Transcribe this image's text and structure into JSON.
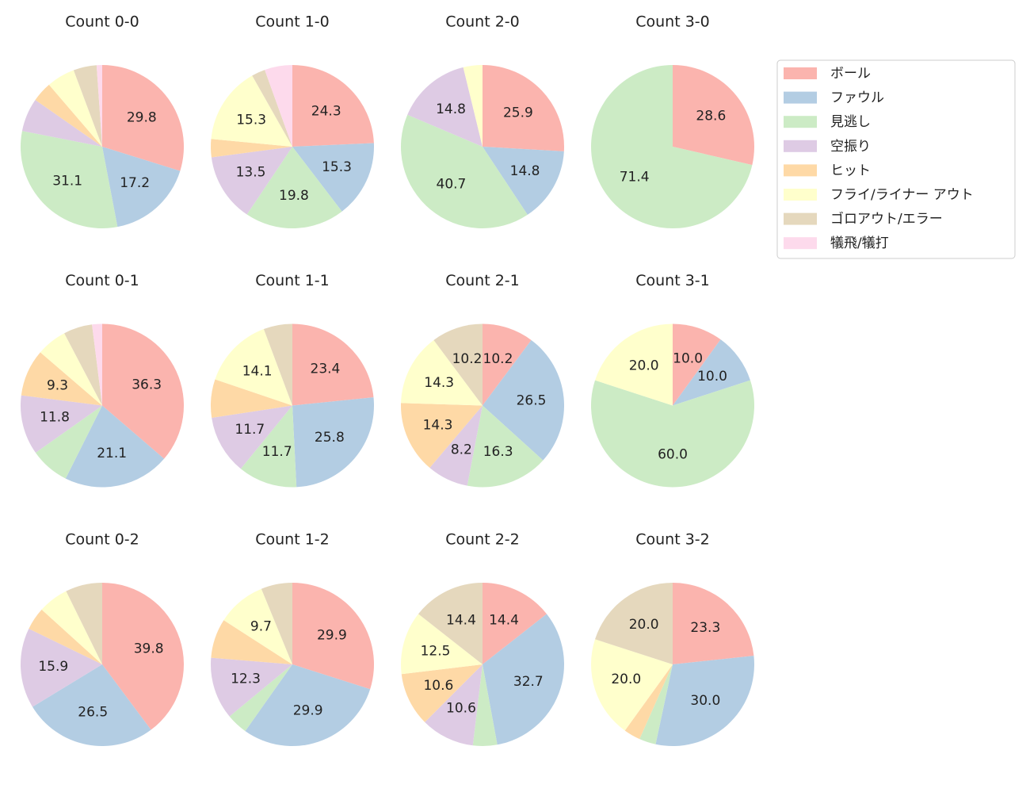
{
  "legend": {
    "categories": [
      "ボール",
      "ファウル",
      "見逃し",
      "空振り",
      "ヒット",
      "フライ/ライナー アウト",
      "ゴロアウト/エラー",
      "犠飛/犠打"
    ],
    "colors": [
      "#fbb4ae",
      "#b3cde3",
      "#ccebc5",
      "#decbe4",
      "#fed9a6",
      "#ffffcc",
      "#e5d8bd",
      "#fddaec"
    ],
    "loc": "upper right"
  },
  "chart_data": [
    {
      "type": "pie",
      "title": "Count 0-0",
      "values": [
        29.8,
        17.2,
        31.1,
        6.6,
        4.0,
        5.6,
        4.6,
        1.1
      ],
      "value_labels": [
        "29.8",
        "17.2",
        "31.1",
        null,
        null,
        null,
        null,
        null
      ]
    },
    {
      "type": "pie",
      "title": "Count 1-0",
      "values": [
        24.3,
        15.3,
        19.8,
        13.5,
        3.6,
        15.3,
        2.7,
        5.5
      ],
      "value_labels": [
        "24.3",
        "15.3",
        "19.8",
        "13.5",
        null,
        "15.3",
        null,
        null
      ]
    },
    {
      "type": "pie",
      "title": "Count 2-0",
      "values": [
        25.9,
        14.8,
        40.7,
        14.8,
        0,
        3.8,
        0,
        0
      ],
      "value_labels": [
        "25.9",
        "14.8",
        "40.7",
        "14.8",
        null,
        null,
        null,
        null
      ]
    },
    {
      "type": "pie",
      "title": "Count 3-0",
      "values": [
        28.6,
        0,
        71.4,
        0,
        0,
        0,
        0,
        0
      ],
      "value_labels": [
        "28.6",
        null,
        "71.4",
        null,
        null,
        null,
        null,
        null
      ]
    },
    {
      "type": "pie",
      "title": "Count 0-1",
      "values": [
        36.3,
        21.1,
        7.8,
        11.8,
        9.3,
        6.0,
        5.7,
        2.0
      ],
      "value_labels": [
        "36.3",
        "21.1",
        null,
        "11.8",
        "9.3",
        null,
        null,
        null
      ]
    },
    {
      "type": "pie",
      "title": "Count 1-1",
      "values": [
        23.4,
        25.8,
        11.7,
        11.7,
        7.6,
        14.1,
        5.7,
        0
      ],
      "value_labels": [
        "23.4",
        "25.8",
        "11.7",
        "11.7",
        null,
        "14.1",
        null,
        null
      ]
    },
    {
      "type": "pie",
      "title": "Count 2-1",
      "values": [
        10.2,
        26.5,
        16.3,
        8.2,
        14.3,
        14.3,
        10.2,
        0
      ],
      "value_labels": [
        "10.2",
        "26.5",
        "16.3",
        "8.2",
        "14.3",
        "14.3",
        "10.2",
        null
      ]
    },
    {
      "type": "pie",
      "title": "Count 3-1",
      "values": [
        10,
        10,
        60,
        0,
        0,
        20,
        0,
        0
      ],
      "value_labels": [
        "10.0",
        "10.0",
        "60.0",
        null,
        null,
        "20.0",
        null,
        null
      ]
    },
    {
      "type": "pie",
      "title": "Count 0-2",
      "values": [
        39.8,
        26.5,
        0,
        15.9,
        4.5,
        6.0,
        7.3,
        0
      ],
      "value_labels": [
        "39.8",
        "26.5",
        null,
        "15.9",
        null,
        null,
        null,
        null
      ]
    },
    {
      "type": "pie",
      "title": "Count 1-2",
      "values": [
        29.9,
        29.9,
        4.2,
        12.3,
        7.8,
        9.7,
        6.2,
        0
      ],
      "value_labels": [
        "29.9",
        "29.9",
        null,
        "12.3",
        null,
        "9.7",
        null,
        null
      ]
    },
    {
      "type": "pie",
      "title": "Count 2-2",
      "values": [
        14.4,
        32.7,
        4.8,
        10.6,
        10.6,
        12.5,
        14.4,
        0
      ],
      "value_labels": [
        "14.4",
        "32.7",
        null,
        "10.6",
        "10.6",
        "12.5",
        "14.4",
        null
      ]
    },
    {
      "type": "pie",
      "title": "Count 3-2",
      "values": [
        23.3,
        30,
        3.3,
        0,
        3.3,
        20,
        20,
        0
      ],
      "value_labels": [
        "23.3",
        "30.0",
        null,
        null,
        null,
        "20.0",
        "20.0",
        null
      ]
    }
  ]
}
